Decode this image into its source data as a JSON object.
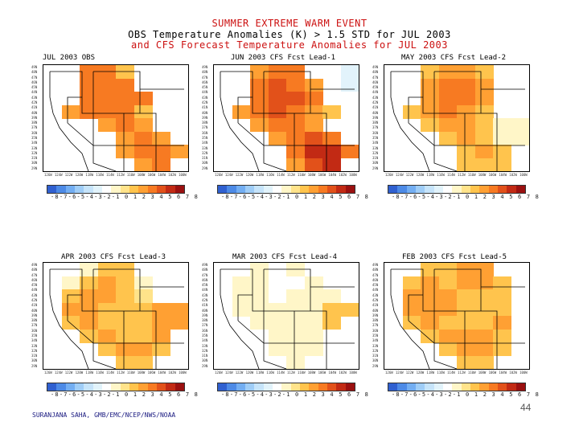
{
  "title": {
    "line1": "SUMMER EXTREME WARM EVENT",
    "line2": "OBS Temperature Anomalies (K) > 1.5 STD for JUL 2003",
    "line3": "and CFS Forecast Temperature Anomalies for JUL 2003"
  },
  "colors": {
    "scale": [
      "#3060d0",
      "#4d8ae6",
      "#73aef2",
      "#9fcdf7",
      "#c6e4fa",
      "#e2f3fb",
      "#ffffff",
      "#fff6c8",
      "#ffe38a",
      "#ffc44d",
      "#ffa033",
      "#f77a22",
      "#e2511a",
      "#c22a14",
      "#9a1010"
    ]
  },
  "colorbar_label": "-8-7-6-5-4-3-2-1 0 1 2 3 4 5 6 7 8",
  "y_ticks": [
    "49N",
    "48N",
    "47N",
    "46N",
    "45N",
    "44N",
    "43N",
    "42N",
    "41N",
    "40N",
    "39N",
    "38N",
    "37N",
    "36N",
    "35N",
    "34N",
    "33N",
    "32N",
    "31N",
    "30N",
    "29N"
  ],
  "x_ticks": [
    "126W",
    "124W",
    "122W",
    "120W",
    "118W",
    "116W",
    "114W",
    "112W",
    "110W",
    "108W",
    "106W",
    "104W",
    "102W",
    "100W"
  ],
  "panels": [
    {
      "title": "JUL 2003 OBS",
      "grid": [
        [
          0,
          0,
          9,
          9,
          7,
          0,
          0,
          0
        ],
        [
          0,
          0,
          9,
          9,
          9,
          0,
          0,
          0
        ],
        [
          0,
          0,
          9,
          9,
          9,
          9,
          0,
          0
        ],
        [
          0,
          8,
          9,
          9,
          9,
          7,
          0,
          0
        ],
        [
          0,
          0,
          0,
          8,
          9,
          8,
          0,
          0
        ],
        [
          0,
          0,
          0,
          0,
          8,
          9,
          8,
          0
        ],
        [
          0,
          0,
          0,
          0,
          8,
          9,
          9,
          8
        ],
        [
          0,
          0,
          0,
          0,
          0,
          8,
          9,
          0
        ]
      ]
    },
    {
      "title": "JUN 2003 CFS Fcst Lead-1",
      "grid": [
        [
          0,
          0,
          8,
          9,
          9,
          0,
          0,
          3
        ],
        [
          0,
          0,
          9,
          10,
          9,
          8,
          0,
          3
        ],
        [
          0,
          0,
          9,
          10,
          10,
          9,
          0,
          4
        ],
        [
          0,
          8,
          9,
          10,
          9,
          8,
          7,
          0
        ],
        [
          0,
          0,
          8,
          9,
          9,
          8,
          0,
          0
        ],
        [
          0,
          0,
          0,
          8,
          9,
          10,
          9,
          0
        ],
        [
          0,
          0,
          0,
          0,
          9,
          11,
          11,
          9
        ],
        [
          0,
          0,
          0,
          0,
          8,
          10,
          11,
          0
        ]
      ]
    },
    {
      "title": "MAY 2003 CFS Fcst Lead-2",
      "grid": [
        [
          0,
          0,
          7,
          8,
          8,
          7,
          0,
          0
        ],
        [
          0,
          0,
          8,
          9,
          9,
          8,
          0,
          0
        ],
        [
          0,
          0,
          8,
          9,
          9,
          8,
          0,
          0
        ],
        [
          0,
          7,
          8,
          9,
          8,
          7,
          0,
          0
        ],
        [
          0,
          0,
          7,
          8,
          8,
          7,
          5,
          5
        ],
        [
          0,
          0,
          0,
          7,
          8,
          7,
          5,
          5
        ],
        [
          0,
          0,
          0,
          0,
          7,
          8,
          7,
          0
        ],
        [
          0,
          0,
          0,
          0,
          7,
          7,
          7,
          0
        ]
      ]
    },
    {
      "title": "APR 2003 CFS Fcst Lead-3",
      "grid": [
        [
          0,
          0,
          5,
          7,
          7,
          0,
          0,
          0
        ],
        [
          0,
          5,
          7,
          8,
          7,
          5,
          0,
          0
        ],
        [
          0,
          7,
          8,
          8,
          7,
          6,
          0,
          0
        ],
        [
          0,
          8,
          8,
          7,
          7,
          7,
          8,
          8
        ],
        [
          0,
          7,
          8,
          7,
          7,
          7,
          8,
          8
        ],
        [
          0,
          0,
          7,
          8,
          7,
          7,
          8,
          0
        ],
        [
          0,
          0,
          0,
          7,
          8,
          8,
          7,
          0
        ],
        [
          0,
          0,
          0,
          0,
          7,
          7,
          0,
          0
        ]
      ]
    },
    {
      "title": "MAR 2003 CFS Fcst Lead-4",
      "grid": [
        [
          0,
          0,
          5,
          4,
          5,
          0,
          0,
          0
        ],
        [
          0,
          5,
          5,
          4,
          4,
          5,
          0,
          0
        ],
        [
          0,
          5,
          5,
          4,
          5,
          5,
          5,
          0
        ],
        [
          0,
          5,
          5,
          5,
          5,
          5,
          7,
          7
        ],
        [
          0,
          0,
          5,
          5,
          5,
          5,
          7,
          0
        ],
        [
          0,
          0,
          0,
          5,
          5,
          5,
          0,
          0
        ],
        [
          0,
          0,
          0,
          5,
          5,
          5,
          0,
          0
        ],
        [
          0,
          0,
          0,
          0,
          5,
          0,
          0,
          0
        ]
      ]
    },
    {
      "title": "FEB 2003 CFS Fcst Lead-5",
      "grid": [
        [
          0,
          0,
          7,
          7,
          8,
          8,
          0,
          0
        ],
        [
          0,
          7,
          8,
          7,
          8,
          8,
          7,
          0
        ],
        [
          0,
          8,
          8,
          8,
          7,
          7,
          7,
          0
        ],
        [
          0,
          8,
          8,
          8,
          7,
          7,
          7,
          0
        ],
        [
          0,
          7,
          8,
          7,
          7,
          7,
          8,
          0
        ],
        [
          0,
          0,
          7,
          8,
          8,
          8,
          7,
          0
        ],
        [
          0,
          0,
          0,
          7,
          8,
          8,
          7,
          0
        ],
        [
          0,
          0,
          0,
          0,
          7,
          7,
          0,
          0
        ]
      ]
    }
  ],
  "footer": "SURANJANA SAHA, GMB/EMC/NCEP/NWS/NOAA",
  "page_number": "44"
}
